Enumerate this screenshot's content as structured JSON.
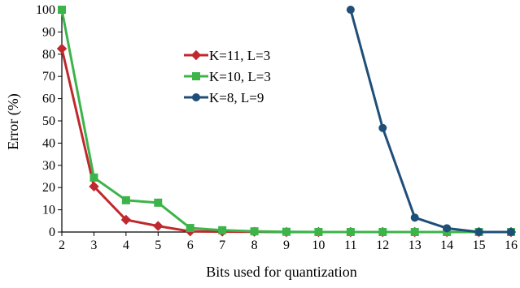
{
  "chart_data": {
    "type": "line",
    "title": "",
    "xlabel": "Bits used for quantization",
    "ylabel": "Error (%)",
    "x": [
      2,
      3,
      4,
      5,
      6,
      7,
      8,
      9,
      10,
      11,
      12,
      13,
      14,
      15,
      16
    ],
    "xlim": [
      2,
      16
    ],
    "ylim": [
      0,
      100
    ],
    "yticks": [
      0,
      10,
      20,
      30,
      40,
      50,
      60,
      70,
      80,
      90,
      100
    ],
    "grid": false,
    "legend_position": "center",
    "series": [
      {
        "name": "K=11, L=3",
        "color": "#c0282d",
        "marker": "diamond",
        "x": [
          2,
          3,
          4,
          5,
          6,
          7,
          8,
          9,
          10,
          11,
          12,
          13,
          14,
          15,
          16
        ],
        "values": [
          82.5,
          20.5,
          5.5,
          2.7,
          0.3,
          0.2,
          0.1,
          0,
          0,
          0,
          0,
          0,
          0,
          0,
          0
        ]
      },
      {
        "name": "K=10, L=3",
        "color": "#3cb44a",
        "marker": "square",
        "x": [
          2,
          3,
          4,
          5,
          6,
          7,
          8,
          9,
          10,
          11,
          12,
          13,
          14,
          15,
          16
        ],
        "values": [
          100,
          24.5,
          14.3,
          13.2,
          1.8,
          0.8,
          0.3,
          0.1,
          0,
          0,
          0,
          0,
          0,
          0,
          0
        ]
      },
      {
        "name": "K=8, L=9",
        "color": "#1f4e79",
        "marker": "circle",
        "x": [
          11,
          12,
          13,
          14,
          15,
          16
        ],
        "values": [
          100,
          46.8,
          6.5,
          1.7,
          0,
          0
        ]
      }
    ]
  }
}
